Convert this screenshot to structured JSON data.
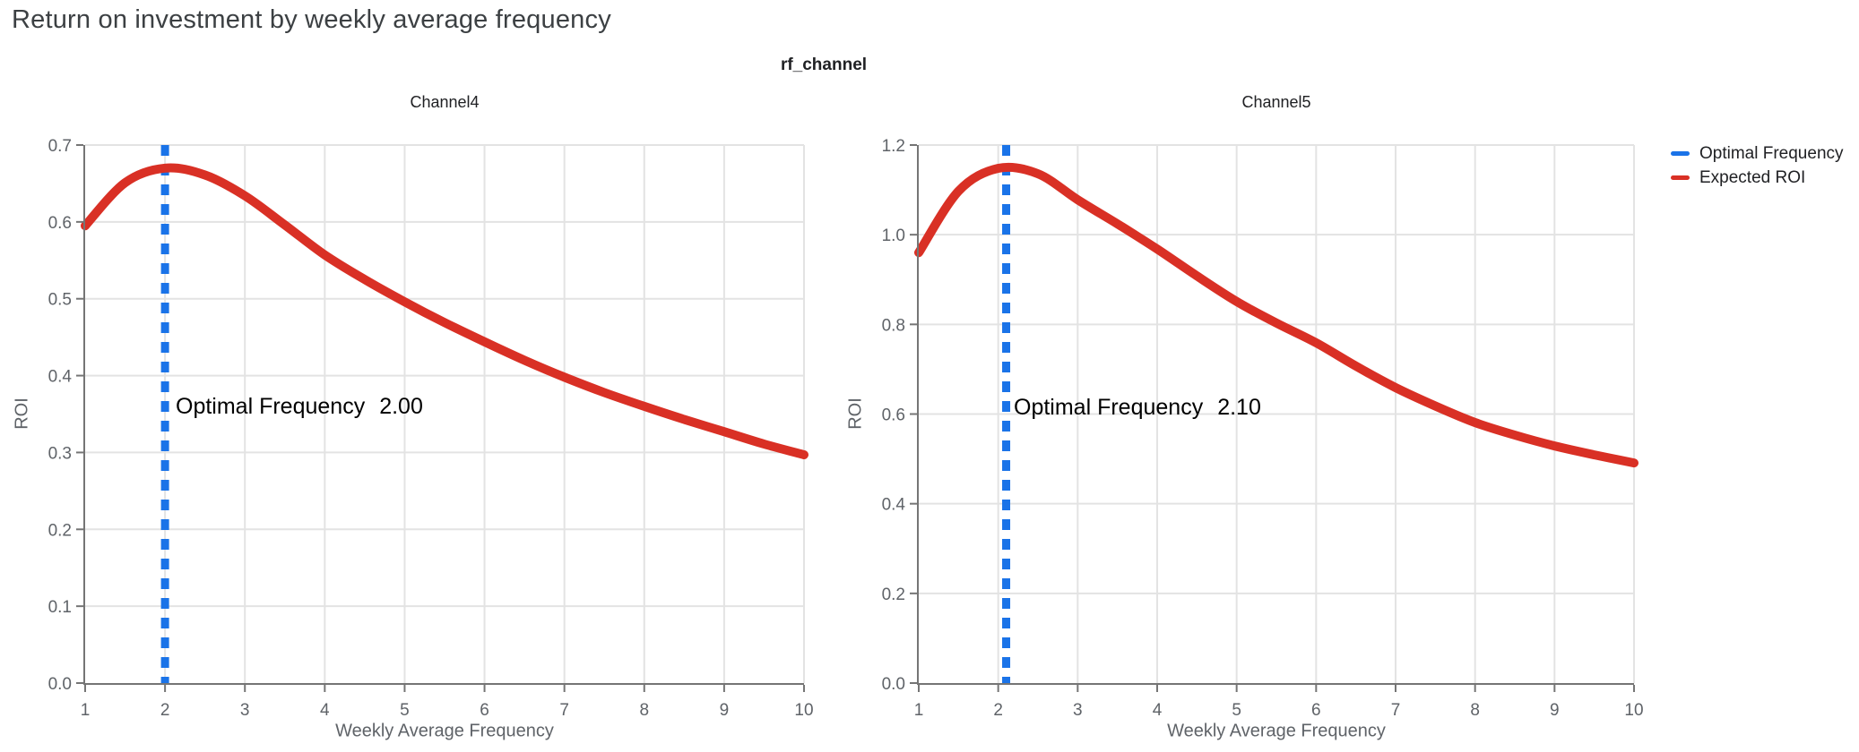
{
  "page": {
    "title": "Return on investment by weekly average frequency",
    "facet_label": "rf_channel"
  },
  "legend": {
    "items": [
      {
        "label": "Optimal Frequency",
        "color": "#1a73e8",
        "dashed": true
      },
      {
        "label": "Expected ROI",
        "color": "#d93025",
        "dashed": false
      }
    ]
  },
  "colors": {
    "optimal_line": "#1a73e8",
    "roi_line": "#d93025",
    "grid": "#e3e3e3",
    "axis": "#757575",
    "tick_text": "#5f6368",
    "title_text": "#3c4043"
  },
  "chart_data": [
    {
      "type": "line",
      "title": "Channel4",
      "xlabel": "Weekly Average Frequency",
      "ylabel": "ROI",
      "xlim": [
        1,
        10
      ],
      "ylim": [
        0,
        0.7
      ],
      "x_ticks": [
        "1",
        "2",
        "3",
        "4",
        "5",
        "6",
        "7",
        "8",
        "9",
        "10"
      ],
      "y_ticks": [
        "0.0",
        "0.1",
        "0.2",
        "0.3",
        "0.4",
        "0.5",
        "0.6",
        "0.7"
      ],
      "grid": true,
      "legend_position": "top-right-outside",
      "optimal_frequency": {
        "label": "Optimal Frequency",
        "value": "2.00",
        "x": 2.0
      },
      "series": [
        {
          "name": "Expected ROI",
          "x": [
            1,
            1.5,
            2,
            2.5,
            3,
            3.5,
            4,
            4.5,
            5,
            5.5,
            6,
            6.5,
            7,
            7.5,
            8,
            8.5,
            9,
            9.5,
            10
          ],
          "y": [
            0.595,
            0.651,
            0.67,
            0.661,
            0.634,
            0.596,
            0.557,
            0.525,
            0.496,
            0.469,
            0.444,
            0.42,
            0.398,
            0.378,
            0.36,
            0.343,
            0.327,
            0.311,
            0.297
          ]
        }
      ]
    },
    {
      "type": "line",
      "title": "Channel5",
      "xlabel": "Weekly Average Frequency",
      "ylabel": "ROI",
      "xlim": [
        1,
        10
      ],
      "ylim": [
        0,
        1.2
      ],
      "x_ticks": [
        "1",
        "2",
        "3",
        "4",
        "5",
        "6",
        "7",
        "8",
        "9",
        "10"
      ],
      "y_ticks": [
        "0.0",
        "0.2",
        "0.4",
        "0.6",
        "0.8",
        "1.0",
        "1.2"
      ],
      "grid": true,
      "legend_position": "top-right-outside",
      "optimal_frequency": {
        "label": "Optimal Frequency",
        "value": "2.10",
        "x": 2.1
      },
      "series": [
        {
          "name": "Expected ROI",
          "x": [
            1,
            1.5,
            2,
            2.5,
            3,
            3.5,
            4,
            4.5,
            5,
            5.5,
            6,
            6.5,
            7,
            7.5,
            8,
            8.5,
            9,
            9.5,
            10
          ],
          "y": [
            0.96,
            1.097,
            1.148,
            1.136,
            1.078,
            1.024,
            0.968,
            0.908,
            0.851,
            0.803,
            0.759,
            0.707,
            0.659,
            0.618,
            0.581,
            0.553,
            0.529,
            0.509,
            0.491
          ]
        }
      ]
    }
  ]
}
